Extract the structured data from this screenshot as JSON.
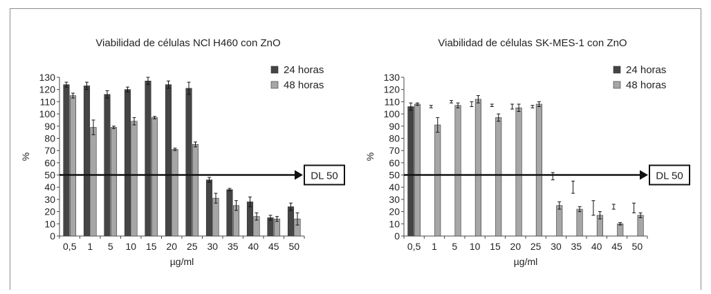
{
  "chart_data": [
    {
      "type": "bar",
      "title": "Viabilidad de células NCl H460 con ZnO",
      "xlabel": "µg/ml",
      "ylabel": "%",
      "ylim": [
        0,
        130
      ],
      "yticks": [
        0,
        10,
        20,
        30,
        40,
        50,
        60,
        70,
        80,
        90,
        100,
        110,
        120,
        130
      ],
      "categories": [
        "0,5",
        "1",
        "5",
        "10",
        "15",
        "20",
        "25",
        "30",
        "35",
        "40",
        "45",
        "50"
      ],
      "legend_position": "top-right",
      "series": [
        {
          "name": "24 horas",
          "color": "#454545",
          "values": [
            124,
            123,
            116,
            120,
            127,
            124,
            121,
            46,
            38,
            28,
            15,
            24
          ],
          "errors": [
            2,
            3,
            3,
            2,
            3,
            3,
            5,
            2,
            1,
            4,
            2,
            3
          ]
        },
        {
          "name": "48 horas",
          "color": "#a6a6a6",
          "values": [
            115,
            89,
            89,
            94,
            97,
            71,
            75,
            31,
            25,
            16,
            14,
            14
          ],
          "errors": [
            2,
            6,
            1,
            3,
            1,
            1,
            2,
            4,
            4,
            3,
            2,
            5
          ]
        }
      ],
      "annotation": {
        "label": "DL 50",
        "y": 50
      }
    },
    {
      "type": "bar",
      "title": "Viabilidad de células SK-MES-1 con ZnO",
      "xlabel": "µg/ml",
      "ylabel": "%",
      "ylim": [
        0,
        130
      ],
      "yticks": [
        0,
        10,
        20,
        30,
        40,
        50,
        60,
        70,
        80,
        90,
        100,
        110,
        120,
        130
      ],
      "categories": [
        "0,5",
        "1",
        "5",
        "10",
        "15",
        "20",
        "25",
        "30",
        "35",
        "40",
        "45",
        "50"
      ],
      "legend_position": "top-right",
      "series": [
        {
          "name": "24 horas",
          "color": "#454545",
          "values": [
            106,
            106,
            110,
            108,
            107,
            106,
            106,
            49,
            40,
            23,
            24,
            23
          ],
          "errors": [
            3,
            1,
            1,
            2,
            1,
            2,
            1,
            3,
            5,
            6,
            2,
            4
          ],
          "bars_drawn": [
            true,
            false,
            false,
            false,
            false,
            false,
            false,
            false,
            false,
            false,
            false,
            false
          ]
        },
        {
          "name": "48 horas",
          "color": "#a6a6a6",
          "values": [
            108,
            91,
            107,
            112,
            97,
            105,
            108,
            25,
            22,
            17,
            10,
            17
          ],
          "errors": [
            1,
            6,
            2,
            3,
            3,
            3,
            2,
            3,
            2,
            3,
            1,
            2
          ]
        }
      ],
      "annotation": {
        "label": "DL 50",
        "y": 50
      }
    }
  ]
}
